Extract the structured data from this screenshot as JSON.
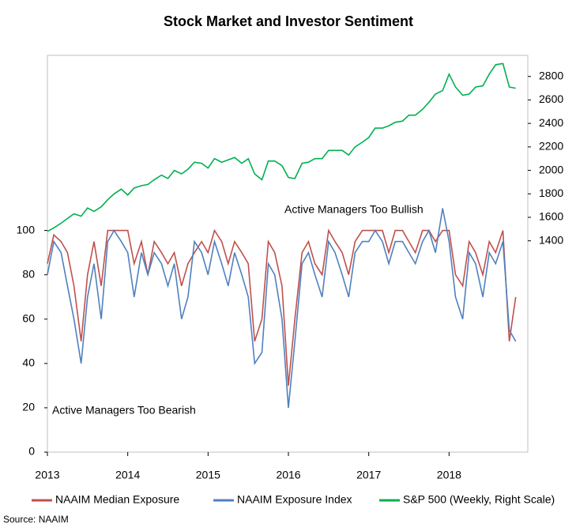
{
  "chart_data": {
    "type": "line",
    "title": "Stock Market and Investor Sentiment",
    "annotations": [
      "Active Managers Too Bullish",
      "Active Managers Too Bearish"
    ],
    "source": "Source: NAAIM",
    "x": [
      2013,
      2013.08,
      2013.17,
      2013.25,
      2013.33,
      2013.42,
      2013.5,
      2013.58,
      2013.67,
      2013.75,
      2013.83,
      2013.92,
      2014,
      2014.08,
      2014.17,
      2014.25,
      2014.33,
      2014.42,
      2014.5,
      2014.58,
      2014.67,
      2014.75,
      2014.83,
      2014.92,
      2015,
      2015.08,
      2015.17,
      2015.25,
      2015.33,
      2015.42,
      2015.5,
      2015.58,
      2015.67,
      2015.75,
      2015.83,
      2015.92,
      2016,
      2016.08,
      2016.17,
      2016.25,
      2016.33,
      2016.42,
      2016.5,
      2016.58,
      2016.67,
      2016.75,
      2016.83,
      2016.92,
      2017,
      2017.08,
      2017.17,
      2017.25,
      2017.33,
      2017.42,
      2017.5,
      2017.58,
      2017.67,
      2017.75,
      2017.83,
      2017.92,
      2018,
      2018.08,
      2018.17,
      2018.25,
      2018.33,
      2018.42,
      2018.5,
      2018.58,
      2018.67,
      2018.75,
      2018.83
    ],
    "xlim": [
      2013,
      2018.98
    ],
    "xticks": [
      2013,
      2014,
      2015,
      2016,
      2017,
      2018
    ],
    "ylim": [
      0,
      179
    ],
    "yticks": [
      0,
      20,
      40,
      60,
      80,
      100
    ],
    "y2lim": [
      -400,
      2980
    ],
    "y2ticks": [
      1400,
      1600,
      1800,
      2000,
      2200,
      2400,
      2600,
      2800
    ],
    "series": [
      {
        "name": "NAAIM Median Exposure",
        "color": "#c0504d",
        "values": [
          85,
          98,
          95,
          90,
          75,
          50,
          80,
          95,
          75,
          100,
          100,
          100,
          100,
          85,
          95,
          80,
          95,
          90,
          85,
          90,
          75,
          85,
          90,
          95,
          90,
          100,
          95,
          85,
          95,
          90,
          85,
          50,
          60,
          95,
          90,
          75,
          30,
          60,
          90,
          95,
          85,
          80,
          100,
          95,
          90,
          80,
          95,
          100,
          100,
          100,
          100,
          90,
          100,
          100,
          95,
          90,
          100,
          100,
          95,
          100,
          100,
          80,
          75,
          95,
          90,
          80,
          95,
          90,
          100,
          50,
          70
        ]
      },
      {
        "name": "NAAIM Exposure Index",
        "color": "#4f81bd",
        "values": [
          80,
          95,
          90,
          75,
          60,
          40,
          70,
          85,
          60,
          95,
          100,
          95,
          90,
          70,
          90,
          80,
          90,
          85,
          75,
          85,
          60,
          70,
          95,
          90,
          80,
          95,
          85,
          75,
          90,
          80,
          70,
          40,
          45,
          85,
          80,
          60,
          20,
          50,
          85,
          90,
          80,
          70,
          95,
          90,
          80,
          70,
          90,
          95,
          95,
          100,
          95,
          85,
          95,
          95,
          90,
          85,
          95,
          100,
          90,
          110,
          95,
          70,
          60,
          90,
          85,
          70,
          90,
          85,
          95,
          55,
          50
        ]
      },
      {
        "name": "S&P 500 (Weekly, Right Scale)",
        "color": "#00b050",
        "axis": "y2",
        "values": [
          1480,
          1510,
          1550,
          1590,
          1630,
          1610,
          1680,
          1650,
          1690,
          1750,
          1800,
          1840,
          1790,
          1850,
          1870,
          1880,
          1920,
          1960,
          1930,
          2000,
          1970,
          2010,
          2070,
          2060,
          2020,
          2100,
          2070,
          2090,
          2110,
          2060,
          2100,
          1970,
          1920,
          2080,
          2080,
          2040,
          1940,
          1930,
          2060,
          2070,
          2100,
          2100,
          2170,
          2170,
          2170,
          2130,
          2200,
          2240,
          2280,
          2360,
          2360,
          2380,
          2410,
          2420,
          2470,
          2470,
          2520,
          2580,
          2650,
          2680,
          2820,
          2710,
          2640,
          2650,
          2710,
          2720,
          2820,
          2900,
          2910,
          2710,
          2700
        ]
      }
    ]
  }
}
